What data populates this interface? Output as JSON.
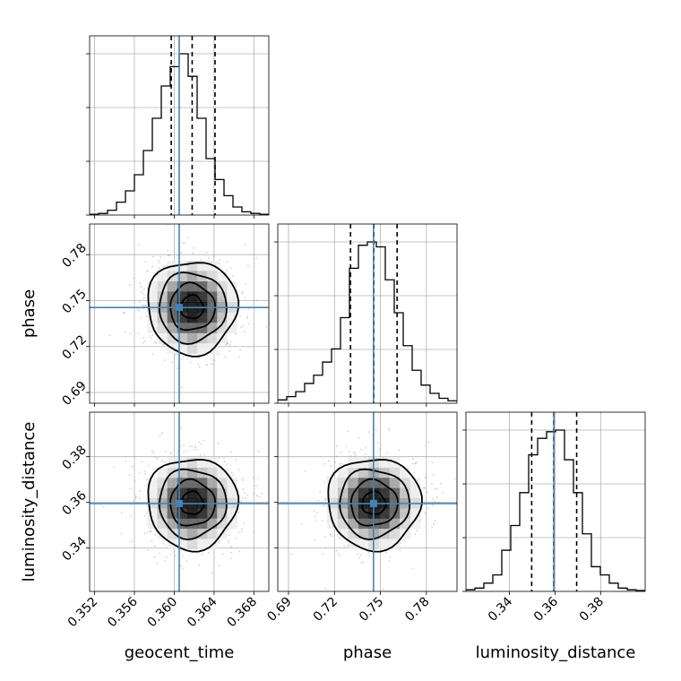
{
  "chart_data": {
    "type": "corner",
    "parameters": [
      "geocent_time",
      "phase",
      "luminosity_distance"
    ],
    "truths": [
      0.3605,
      0.7455,
      0.3595
    ],
    "truth_color": "#4682b4",
    "grid": true,
    "axes": {
      "geocent_time": {
        "label": "geocent_time",
        "range": [
          0.3515,
          0.3695
        ],
        "ticks": [
          0.352,
          0.356,
          0.36,
          0.364,
          0.368
        ],
        "tick_labels": [
          "0.352",
          "0.356",
          "0.360",
          "0.364",
          "0.368"
        ]
      },
      "phase": {
        "label": "phase",
        "range": [
          0.683,
          0.8
        ],
        "ticks": [
          0.69,
          0.72,
          0.75,
          0.78
        ],
        "tick_labels": [
          "0.69",
          "0.72",
          "0.75",
          "0.78"
        ]
      },
      "luminosity_distance": {
        "label": "luminosity_distance",
        "range": [
          0.321,
          0.3995
        ],
        "ticks": [
          0.34,
          0.36,
          0.38
        ],
        "tick_labels": [
          "0.34",
          "0.36",
          "0.38"
        ]
      }
    },
    "marginals": [
      {
        "parameter": "geocent_time",
        "bin_edges": [
          0.3515,
          0.3524,
          0.3533,
          0.3542,
          0.3551,
          0.356,
          0.3569,
          0.3578,
          0.3587,
          0.3596,
          0.3605,
          0.3614,
          0.3623,
          0.3632,
          0.3641,
          0.365,
          0.3659,
          0.3668,
          0.3677,
          0.3686,
          0.3695
        ],
        "counts": [
          0.005,
          0.01,
          0.03,
          0.08,
          0.15,
          0.25,
          0.4,
          0.6,
          0.8,
          0.92,
          1.0,
          0.86,
          0.6,
          0.35,
          0.22,
          0.12,
          0.05,
          0.02,
          0.01,
          0.005
        ],
        "quantiles": [
          0.3597,
          0.3618,
          0.3641
        ]
      },
      {
        "parameter": "phase",
        "bin_edges": [
          0.683,
          0.68885,
          0.6947,
          0.70055,
          0.7064,
          0.71225,
          0.7181,
          0.72395,
          0.7298,
          0.73565,
          0.7415,
          0.74735,
          0.7532,
          0.75905,
          0.7649,
          0.77075,
          0.7766,
          0.78245,
          0.7883,
          0.79415,
          0.8
        ],
        "counts": [
          0.02,
          0.04,
          0.07,
          0.12,
          0.17,
          0.25,
          0.33,
          0.52,
          0.82,
          0.96,
          0.98,
          0.95,
          0.75,
          0.55,
          0.35,
          0.2,
          0.11,
          0.06,
          0.03,
          0.015
        ],
        "quantiles": [
          0.7305,
          0.7457,
          0.7609
        ]
      },
      {
        "parameter": "luminosity_distance",
        "bin_edges": [
          0.321,
          0.32492,
          0.32885,
          0.33277,
          0.3367,
          0.34062,
          0.34455,
          0.34847,
          0.3524,
          0.35632,
          0.36025,
          0.36417,
          0.3681,
          0.37202,
          0.37595,
          0.37987,
          0.3838,
          0.38772,
          0.39165,
          0.39557,
          0.3995
        ],
        "counts": [
          0.01,
          0.02,
          0.05,
          0.1,
          0.25,
          0.4,
          0.6,
          0.83,
          0.93,
          0.97,
          0.98,
          0.8,
          0.6,
          0.35,
          0.15,
          0.1,
          0.05,
          0.02,
          0.01,
          0.005
        ],
        "quantiles": [
          0.3498,
          0.3594,
          0.3695
        ]
      }
    ],
    "joint": [
      {
        "x": "geocent_time",
        "y": "phase",
        "center": [
          0.3618,
          0.7457
        ],
        "sigma": [
          0.00225,
          0.0152
        ],
        "contour_levels_sigma": [
          0.5,
          1.0,
          1.5,
          2.0
        ]
      },
      {
        "x": "geocent_time",
        "y": "luminosity_distance",
        "center": [
          0.3618,
          0.3596
        ],
        "sigma": [
          0.00225,
          0.01
        ],
        "contour_levels_sigma": [
          0.5,
          1.0,
          1.5,
          2.0
        ]
      },
      {
        "x": "phase",
        "y": "luminosity_distance",
        "center": [
          0.7457,
          0.3596
        ],
        "sigma": [
          0.0152,
          0.01
        ],
        "contour_levels_sigma": [
          0.5,
          1.0,
          1.5,
          2.0
        ]
      }
    ]
  }
}
